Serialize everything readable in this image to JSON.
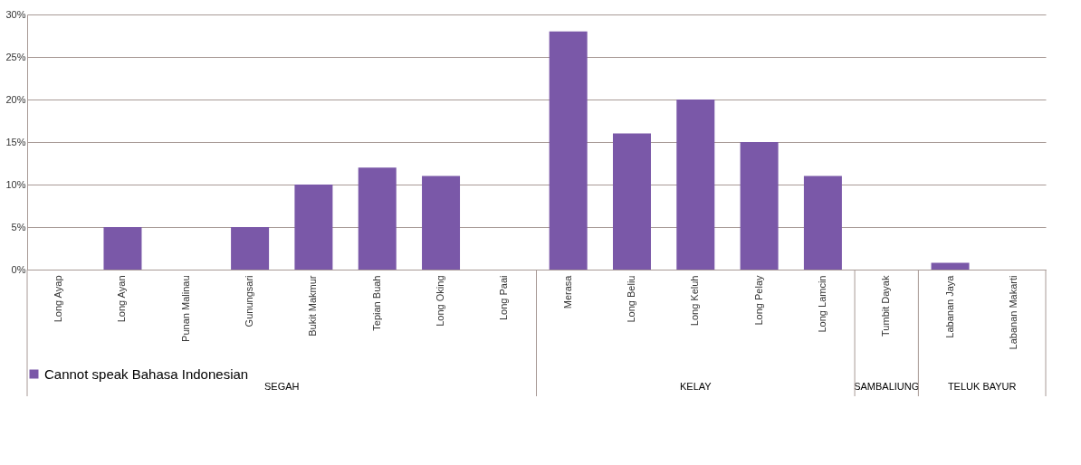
{
  "chart_data": {
    "type": "bar",
    "categories": [
      "Long Ayap",
      "Long Ayan",
      "Punan Malinau",
      "Gunungsari",
      "Bukit Makmur",
      "Tepian Buah",
      "Long Oking",
      "Long Paai",
      "Merasa",
      "Long Beliu",
      "Long Keluh",
      "Long Pelay",
      "Long Lamcin",
      "Tumbit Dayak",
      "Labanan Jaya",
      "Labanan Makarti"
    ],
    "series": [
      {
        "name": "Cannot speak Bahasa Indonesian",
        "color": "#7a58a8",
        "values": [
          0,
          5,
          0,
          5,
          10,
          12,
          11,
          0,
          28,
          16,
          20,
          15,
          11,
          0,
          0.8,
          0
        ]
      }
    ],
    "ylim": [
      0,
      30
    ],
    "yticks": [
      {
        "value": 0,
        "label": "0%"
      },
      {
        "value": 5,
        "label": "5%"
      },
      {
        "value": 10,
        "label": "10%"
      },
      {
        "value": 15,
        "label": "15%"
      },
      {
        "value": 20,
        "label": "20%"
      },
      {
        "value": 25,
        "label": "25%"
      },
      {
        "value": 30,
        "label": "30%"
      }
    ],
    "annotations": [
      "SEGAH",
      "KELAY",
      "SAMBALIUNG",
      "TELUK BAYUR"
    ],
    "grid": "y",
    "legend": "bottom"
  }
}
